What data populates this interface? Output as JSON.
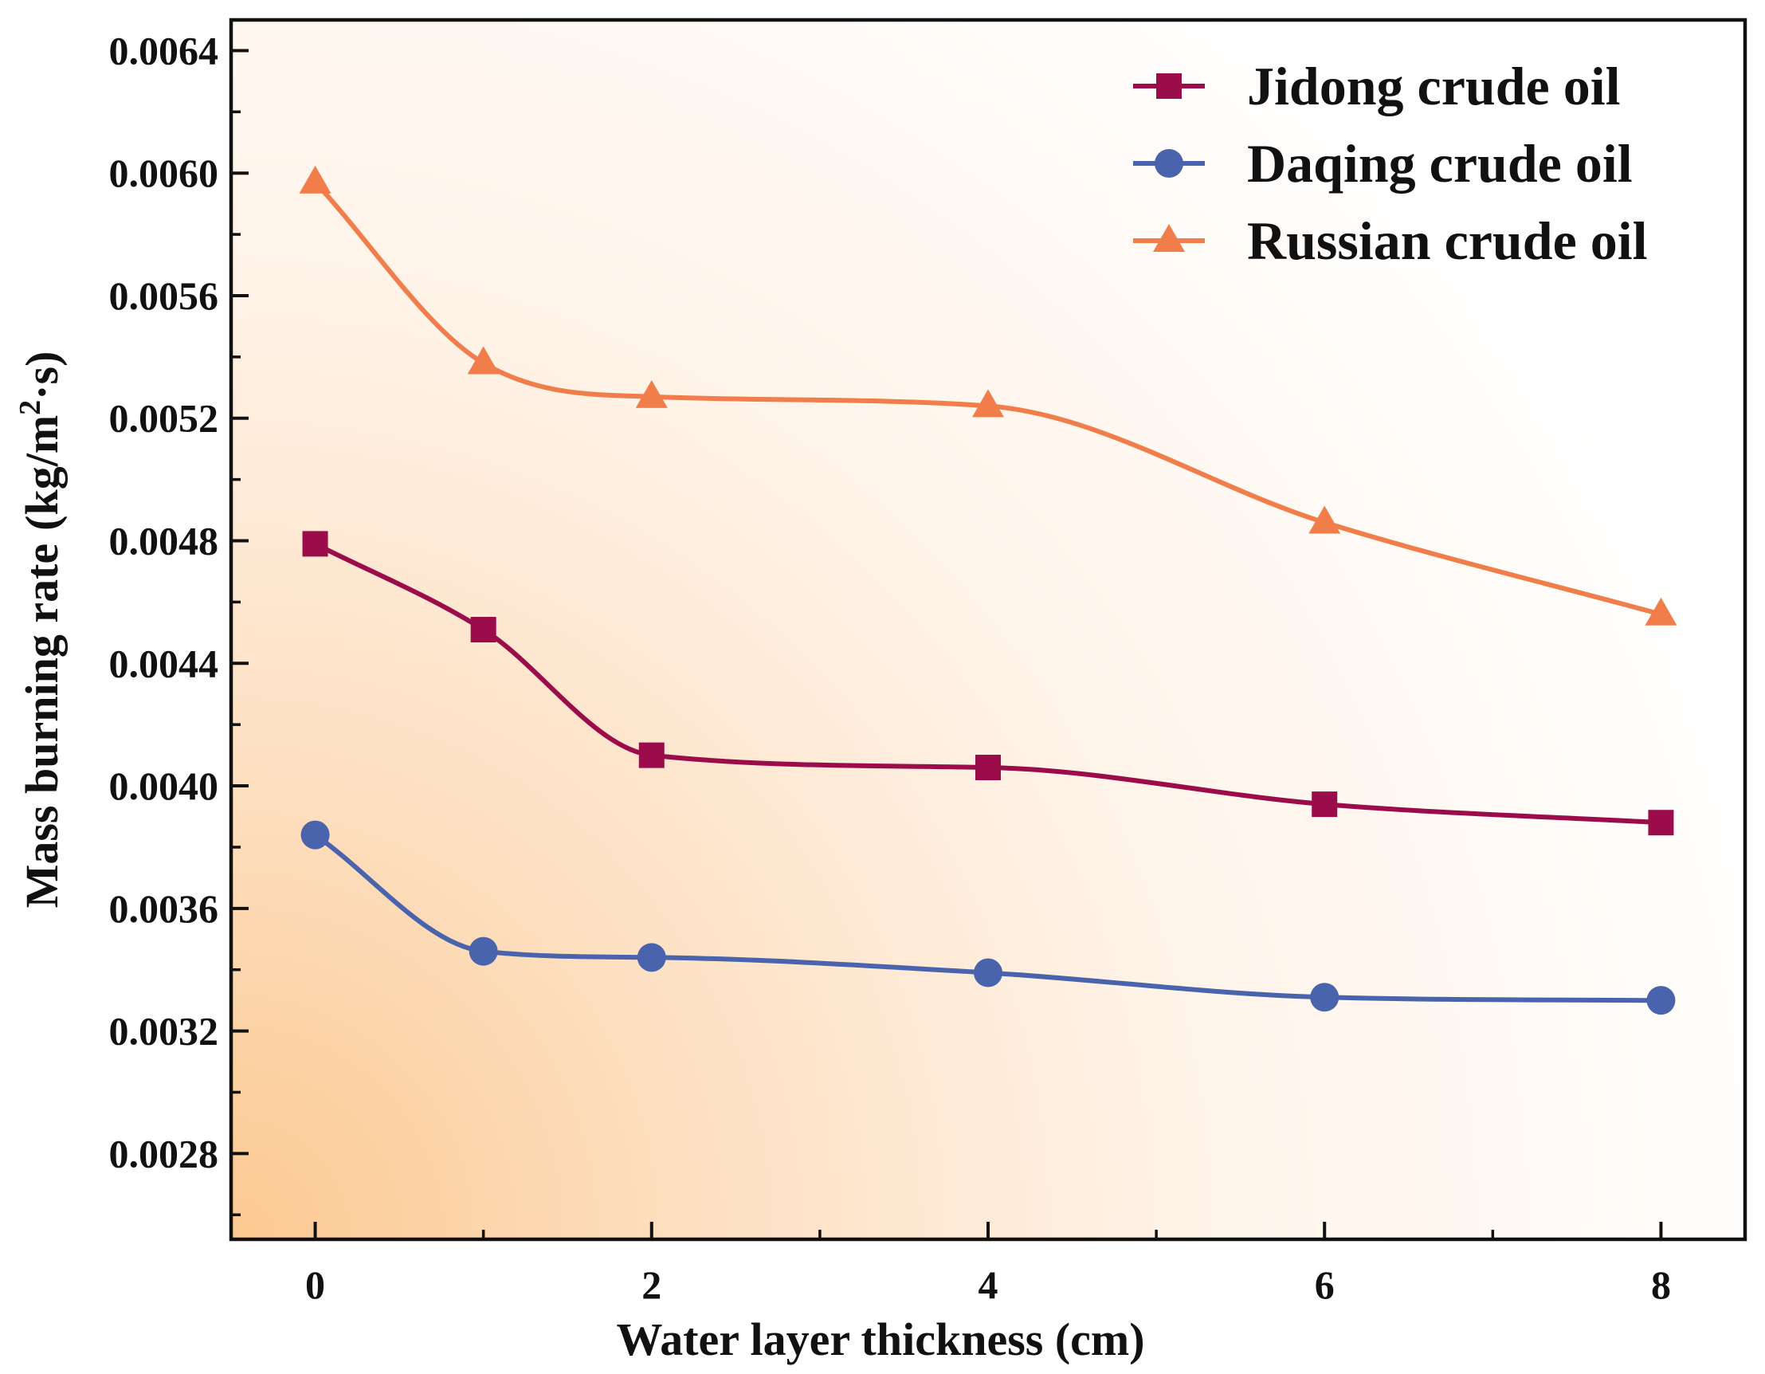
{
  "chart_data": {
    "type": "line",
    "title": "",
    "xlabel": "Water layer thickness (cm)",
    "ylabel": "Mass burning rate",
    "ylabel_unit": {
      "open": "(kg/m",
      "sup": "2",
      "close": "·s)"
    },
    "x": [
      0,
      1,
      2,
      4,
      6,
      8
    ],
    "xlim": [
      -0.5,
      8.5
    ],
    "ylim": [
      0.00252,
      0.0065
    ],
    "xticks": [
      0,
      2,
      4,
      6,
      8
    ],
    "xtick_labels": [
      "0",
      "2",
      "4",
      "6",
      "8"
    ],
    "xminor": [
      1,
      3,
      5,
      7
    ],
    "yticks": [
      0.0028,
      0.0032,
      0.0036,
      0.004,
      0.0044,
      0.0048,
      0.0052,
      0.0056,
      0.006,
      0.0064
    ],
    "ytick_labels": [
      "0.0028",
      "0.0032",
      "0.0036",
      "0.0040",
      "0.0044",
      "0.0048",
      "0.0052",
      "0.0056",
      "0.0060",
      "0.0064"
    ],
    "yminor": [
      0.0026,
      0.003,
      0.0034,
      0.0038,
      0.0042,
      0.0046,
      0.005,
      0.0054,
      0.0058,
      0.0062
    ],
    "grid": false,
    "legend_position": "top-right",
    "series": [
      {
        "name": "Jidong crude oil",
        "marker": "square",
        "color": "#9b0d4a",
        "values": [
          0.00479,
          0.00451,
          0.0041,
          0.00406,
          0.00394,
          0.00388
        ]
      },
      {
        "name": "Daqing crude oil",
        "marker": "circle",
        "color": "#4a63ad",
        "values": [
          0.00384,
          0.00346,
          0.00344,
          0.00339,
          0.00331,
          0.0033
        ]
      },
      {
        "name": "Russian crude oil",
        "marker": "triangle",
        "color": "#f07d4a",
        "values": [
          0.00597,
          0.00538,
          0.00527,
          0.00524,
          0.00486,
          0.00456
        ]
      }
    ]
  }
}
